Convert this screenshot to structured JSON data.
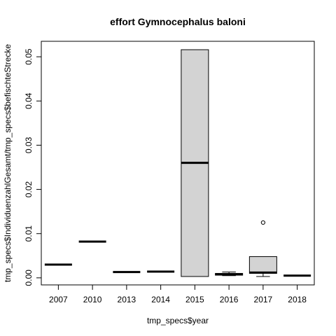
{
  "chart_data": {
    "type": "box",
    "title": "effort Gymnocephalus baloni",
    "xlabel": "tmp_specs$year",
    "ylabel": "tmp_specs$IndividuenzahlGesamt/tmp_specs$befischteStrecke",
    "ylim": [
      -0.0016,
      0.0535
    ],
    "yticks": [
      0.0,
      0.01,
      0.02,
      0.03,
      0.04,
      0.05
    ],
    "ytick_labels": [
      "0.00",
      "0.01",
      "0.02",
      "0.03",
      "0.04",
      "0.05"
    ],
    "categories": [
      "2007",
      "2010",
      "2013",
      "2014",
      "2015",
      "2016",
      "2017",
      "2018"
    ],
    "boxes": [
      {
        "min": 0.003,
        "q1": 0.003,
        "median": 0.003,
        "q3": 0.003,
        "max": 0.003,
        "outliers": []
      },
      {
        "min": 0.0082,
        "q1": 0.0082,
        "median": 0.0082,
        "q3": 0.0082,
        "max": 0.0082,
        "outliers": []
      },
      {
        "min": 0.0013,
        "q1": 0.0013,
        "median": 0.0013,
        "q3": 0.0013,
        "max": 0.0013,
        "outliers": []
      },
      {
        "min": 0.0014,
        "q1": 0.0014,
        "median": 0.0014,
        "q3": 0.0014,
        "max": 0.0014,
        "outliers": []
      },
      {
        "min": 0.0003,
        "q1": 0.0003,
        "median": 0.026,
        "q3": 0.0516,
        "max": 0.0516,
        "outliers": []
      },
      {
        "min": 0.0005,
        "q1": 0.0006,
        "median": 0.0008,
        "q3": 0.001,
        "max": 0.0013,
        "outliers": []
      },
      {
        "min": 0.0003,
        "q1": 0.001,
        "median": 0.0012,
        "q3": 0.0048,
        "max": 0.0048,
        "outliers": [
          0.0125
        ]
      },
      {
        "min": 0.0005,
        "q1": 0.0005,
        "median": 0.0005,
        "q3": 0.0005,
        "max": 0.0005,
        "outliers": []
      }
    ],
    "box_fill": "#d3d3d3",
    "stroke": "#000000",
    "grid": false,
    "legend": "none"
  }
}
